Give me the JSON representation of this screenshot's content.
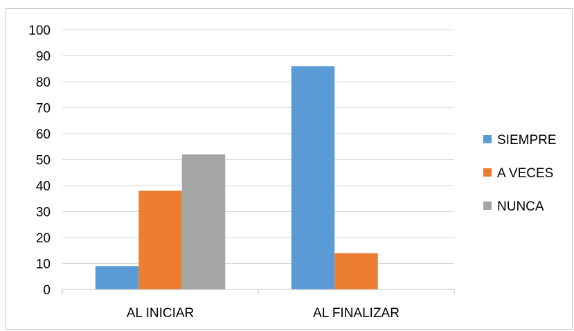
{
  "chart_data": {
    "type": "bar",
    "categories": [
      "AL INICIAR",
      "AL FINALIZAR"
    ],
    "series": [
      {
        "name": "SIEMPRE",
        "color": "#5B9BD5",
        "values": [
          9,
          86
        ]
      },
      {
        "name": "A VECES",
        "color": "#ED7D31",
        "values": [
          38,
          14
        ]
      },
      {
        "name": "NUNCA",
        "color": "#A5A5A5",
        "values": [
          52,
          0
        ]
      }
    ],
    "ylim": [
      0,
      100
    ],
    "yticks": [
      "0",
      "10",
      "20",
      "30",
      "40",
      "50",
      "60",
      "70",
      "80",
      "90",
      "100"
    ],
    "grid": true,
    "legend_position": "right"
  }
}
